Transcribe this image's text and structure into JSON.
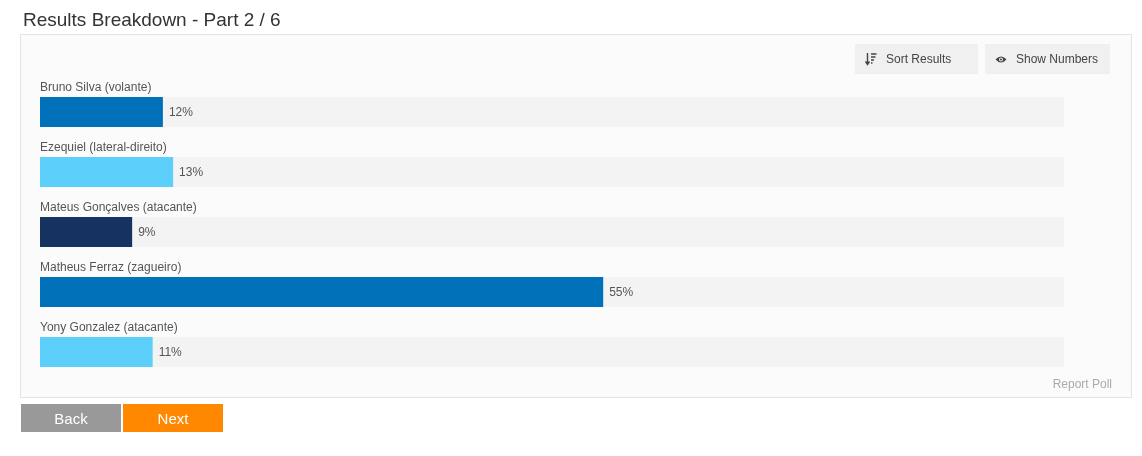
{
  "chart_data": {
    "type": "bar",
    "orientation": "horizontal",
    "title": "Results Breakdown - Part 2 / 6",
    "categories": [
      "Bruno Silva (volante)",
      "Ezequiel (lateral-direito)",
      "Mateus Gonçalves (atacante)",
      "Matheus Ferraz (zagueiro)",
      "Yony Gonzalez (atacante)"
    ],
    "values": [
      12,
      13,
      9,
      55,
      11
    ],
    "colors": [
      "#0070b8",
      "#5bcefa",
      "#163261",
      "#0070b8",
      "#5bcefa"
    ],
    "value_labels": [
      "12%",
      "13%",
      "9%",
      "55%",
      "11%"
    ],
    "xlim": [
      0,
      100
    ],
    "tick_labels": "y",
    "annotations": [
      "Sort Results",
      "Show Numbers",
      "Report Poll",
      "Back",
      "Next"
    ]
  }
}
